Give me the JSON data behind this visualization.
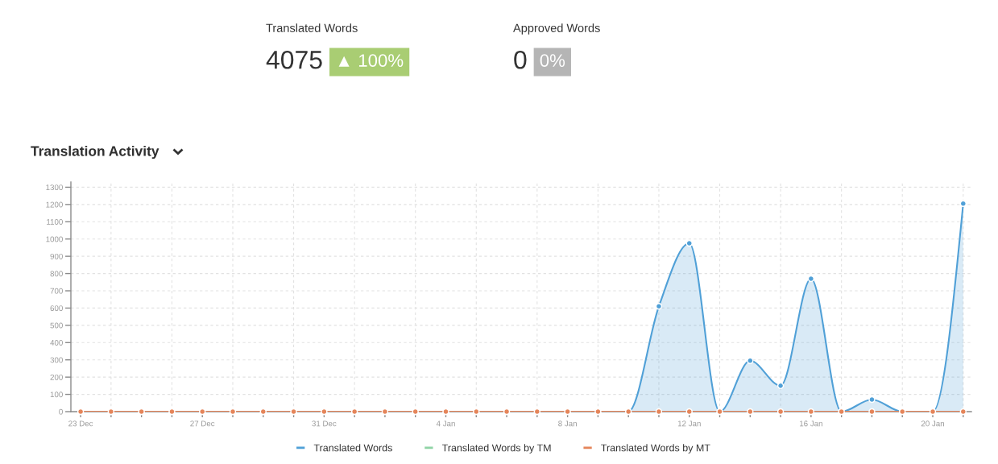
{
  "chart_data": [
    {
      "type": "other",
      "title": "Translated Words",
      "annotations": [
        "4075",
        "▲ 100%"
      ],
      "color": "#a9cd73"
    },
    {
      "type": "other",
      "title": "Approved Words",
      "annotations": [
        "0",
        "0%"
      ],
      "color": "#b5b5b5"
    },
    {
      "type": "line",
      "title": "Translation Activity",
      "categories": [
        "23 Dec",
        null,
        null,
        null,
        "27 Dec",
        null,
        null,
        null,
        "31 Dec",
        null,
        null,
        null,
        "4 Jan",
        null,
        null,
        null,
        "8 Jan",
        null,
        null,
        null,
        "12 Jan",
        null,
        null,
        null,
        "16 Jan",
        null,
        null,
        null,
        "20 Jan",
        null
      ],
      "series": [
        {
          "name": "Translated Words",
          "type": "area",
          "color": "#50a0d7",
          "values": [
            0,
            0,
            0,
            0,
            0,
            0,
            0,
            0,
            0,
            0,
            0,
            0,
            0,
            0,
            0,
            0,
            0,
            0,
            0,
            610,
            975,
            0,
            295,
            150,
            770,
            0,
            70,
            0,
            0,
            1205
          ]
        },
        {
          "name": "Translated Words by TM",
          "type": "line",
          "color": "#8fd3a5",
          "values": [
            null,
            null,
            null,
            null,
            null,
            null,
            null,
            null,
            null,
            null,
            null,
            null,
            null,
            null,
            null,
            null,
            null,
            null,
            null,
            null,
            null,
            null,
            null,
            null,
            null,
            null,
            null,
            null,
            null,
            null
          ]
        },
        {
          "name": "Translated Words by MT",
          "type": "line",
          "color": "#e5855a",
          "values": [
            0,
            0,
            0,
            0,
            0,
            0,
            0,
            0,
            0,
            0,
            0,
            0,
            0,
            0,
            0,
            0,
            0,
            0,
            0,
            0,
            0,
            0,
            0,
            0,
            0,
            0,
            0,
            0,
            0,
            0
          ]
        }
      ],
      "ylim": [
        0,
        1330
      ],
      "yticks": [
        0,
        100,
        200,
        300,
        400,
        500,
        600,
        700,
        800,
        900,
        1000,
        1100,
        1200,
        1300
      ],
      "grid": true,
      "legend": "bottom",
      "marker": "circle",
      "line_style": "solid"
    }
  ]
}
